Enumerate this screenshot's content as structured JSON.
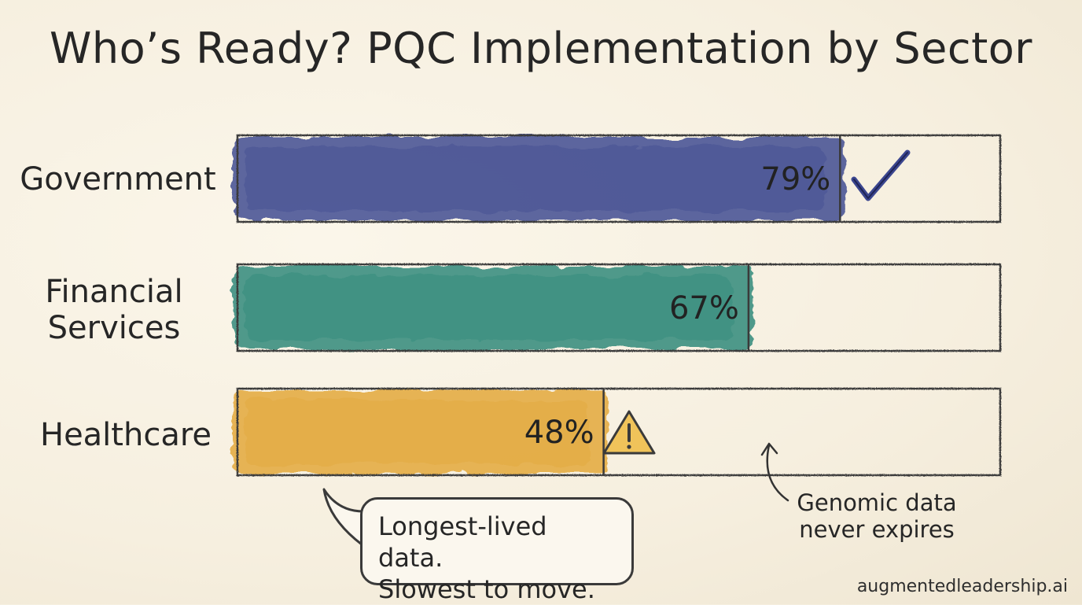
{
  "chart_data": {
    "type": "bar",
    "orientation": "horizontal",
    "title": "Who’s Ready? PQC Implementation by Sector",
    "categories": [
      "Government",
      "Financial Services",
      "Healthcare"
    ],
    "values": [
      79,
      67,
      48
    ],
    "value_labels": [
      "79%",
      "67%",
      "48%"
    ],
    "xlim": [
      0,
      100
    ],
    "unit": "%",
    "colors": [
      "#3b468f",
      "#2a8677",
      "#e3a634"
    ],
    "markers": [
      "check-icon",
      "",
      "warning-icon"
    ]
  },
  "annotations": {
    "callout": [
      "Longest-lived data.",
      "Slowest to move."
    ],
    "arrow_note": [
      "Genomic data",
      "never expires"
    ]
  },
  "footer": "augmentedleadership.ai"
}
